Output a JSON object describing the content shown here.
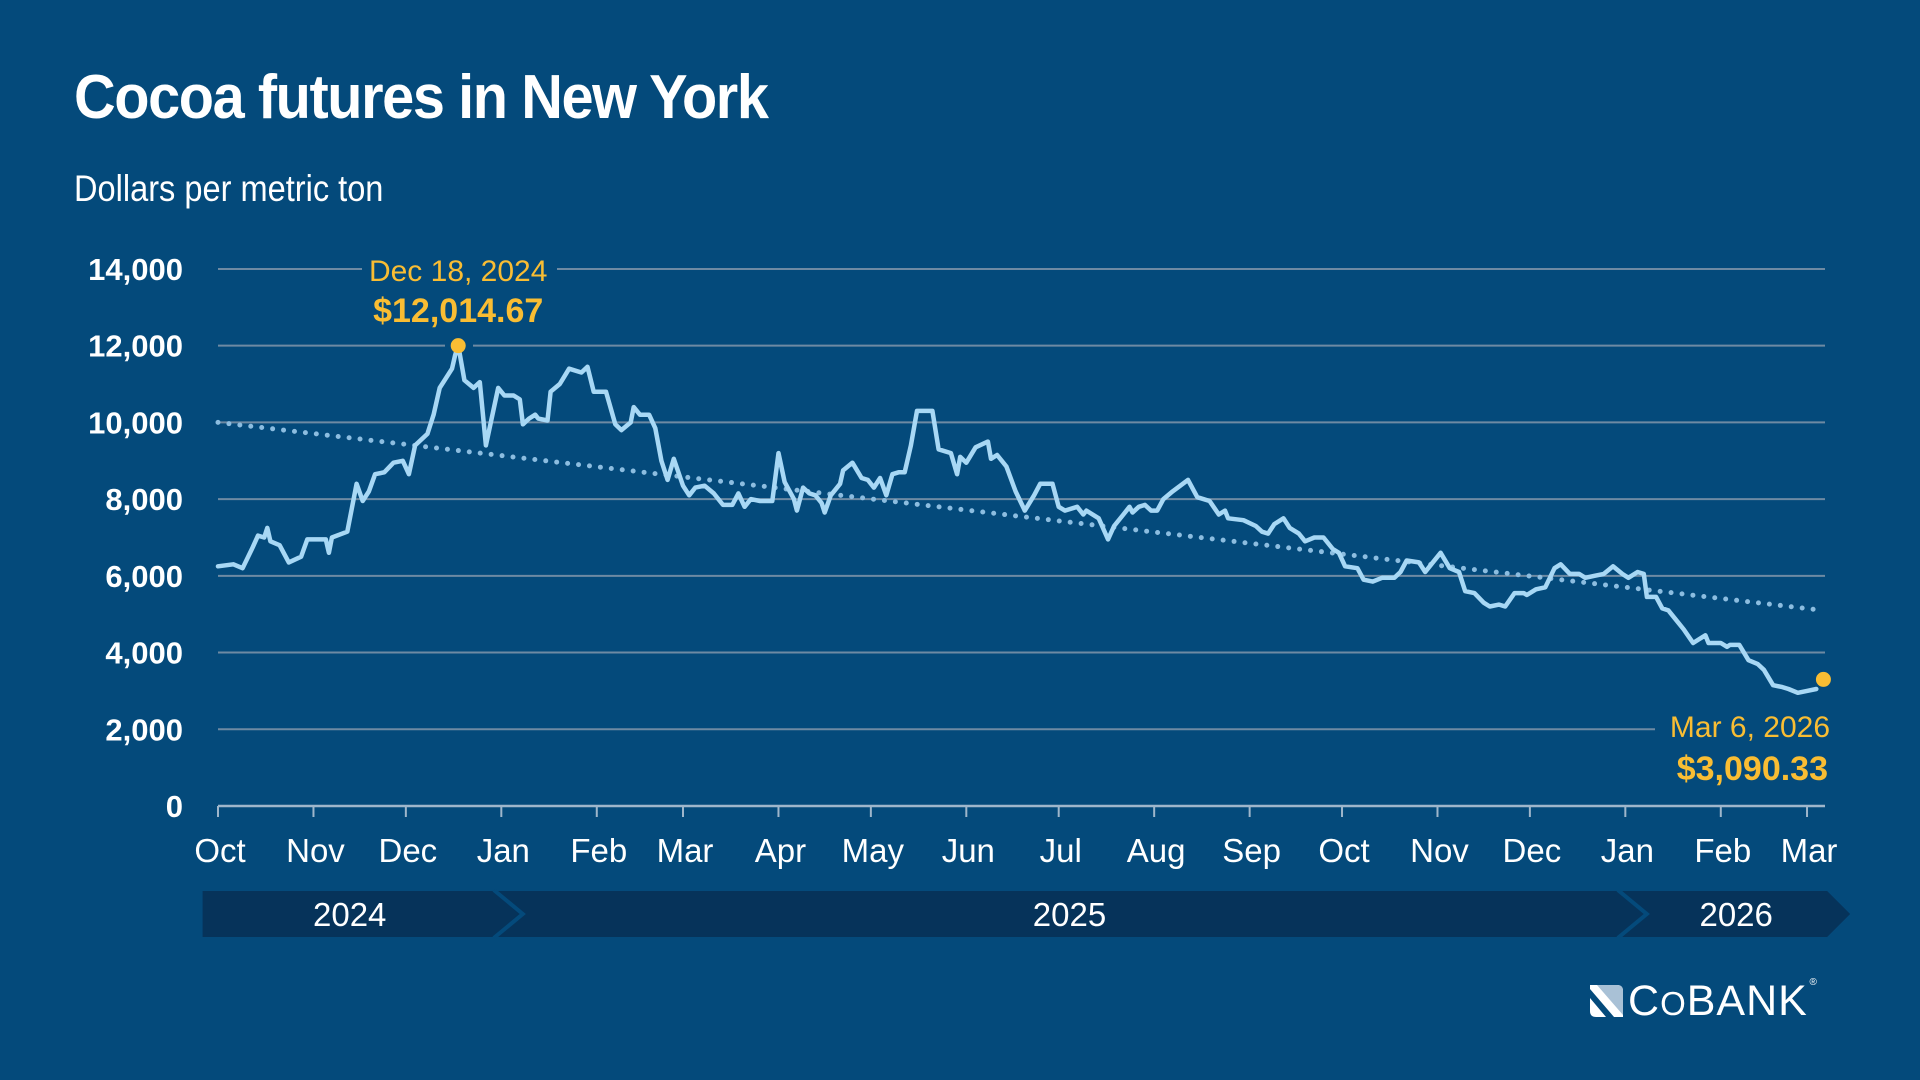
{
  "header": {
    "title": "Cocoa futures in New York",
    "subtitle": "Dollars per metric ton"
  },
  "colors": {
    "background": "#044a7b",
    "line": "#a8d8f5",
    "trend": "#8cbde0",
    "highlight": "#f9bd33",
    "gridline": "#6e8aa3",
    "year_band": "#06335a"
  },
  "logo": {
    "text_c": "C",
    "text_o": "O",
    "text_rest": "BANK",
    "reg": "®"
  },
  "chart_data": {
    "type": "line",
    "title": "Cocoa futures in New York",
    "subtitle": "Dollars per metric ton",
    "xlabel": "",
    "ylabel": "Dollars per metric ton",
    "ylim": [
      0,
      14000
    ],
    "grid": true,
    "y_ticks": [
      {
        "value": 0,
        "label": "0"
      },
      {
        "value": 2000,
        "label": "2,000"
      },
      {
        "value": 4000,
        "label": "4,000"
      },
      {
        "value": 6000,
        "label": "6,000"
      },
      {
        "value": 8000,
        "label": "8,000"
      },
      {
        "value": 10000,
        "label": "10,000"
      },
      {
        "value": 12000,
        "label": "12,000"
      },
      {
        "value": 14000,
        "label": "14,000"
      }
    ],
    "x_start_date": "2024-10-01",
    "x_range_days": [
      0,
      521
    ],
    "x_ticks": [
      {
        "day": 0,
        "label": "Oct"
      },
      {
        "day": 31,
        "label": "Nov"
      },
      {
        "day": 61,
        "label": "Dec"
      },
      {
        "day": 92,
        "label": "Jan"
      },
      {
        "day": 123,
        "label": "Feb"
      },
      {
        "day": 151,
        "label": "Mar"
      },
      {
        "day": 182,
        "label": "Apr"
      },
      {
        "day": 212,
        "label": "May"
      },
      {
        "day": 243,
        "label": "Jun"
      },
      {
        "day": 273,
        "label": "Jul"
      },
      {
        "day": 304,
        "label": "Aug"
      },
      {
        "day": 335,
        "label": "Sep"
      },
      {
        "day": 365,
        "label": "Oct"
      },
      {
        "day": 396,
        "label": "Nov"
      },
      {
        "day": 426,
        "label": "Dec"
      },
      {
        "day": 457,
        "label": "Jan"
      },
      {
        "day": 488,
        "label": "Feb"
      },
      {
        "day": 516,
        "label": "Mar"
      }
    ],
    "years": [
      {
        "label": "2024",
        "start_day": -5,
        "end_day": 98
      },
      {
        "label": "2025",
        "start_day": 90,
        "end_day": 463
      },
      {
        "label": "2026",
        "start_day": 456,
        "end_day": 530
      }
    ],
    "series": [
      {
        "name": "Cocoa futures (New York)",
        "points": [
          [
            0,
            6250
          ],
          [
            5,
            6300
          ],
          [
            8,
            6200
          ],
          [
            11,
            6700
          ],
          [
            13,
            7050
          ],
          [
            15,
            7000
          ],
          [
            16,
            7250
          ],
          [
            17,
            6900
          ],
          [
            20,
            6800
          ],
          [
            23,
            6350
          ],
          [
            27,
            6500
          ],
          [
            29,
            6950
          ],
          [
            35,
            6950
          ],
          [
            36,
            6600
          ],
          [
            37,
            7000
          ],
          [
            42,
            7150
          ],
          [
            45,
            8400
          ],
          [
            47,
            7950
          ],
          [
            49,
            8200
          ],
          [
            51,
            8650
          ],
          [
            54,
            8700
          ],
          [
            57,
            8950
          ],
          [
            60,
            9000
          ],
          [
            62,
            8650
          ],
          [
            64,
            9400
          ],
          [
            68,
            9700
          ],
          [
            70,
            10200
          ],
          [
            72,
            10900
          ],
          [
            76,
            11400
          ],
          [
            77,
            11750
          ],
          [
            78,
            12014.67
          ],
          [
            80,
            11100
          ],
          [
            83,
            10900
          ],
          [
            85,
            11050
          ],
          [
            87,
            9400
          ],
          [
            91,
            10900
          ],
          [
            93,
            10700
          ],
          [
            96,
            10700
          ],
          [
            98,
            10600
          ],
          [
            99,
            9950
          ],
          [
            101,
            10100
          ],
          [
            103,
            10200
          ],
          [
            104,
            10100
          ],
          [
            107,
            10050
          ],
          [
            108,
            10800
          ],
          [
            111,
            11000
          ],
          [
            114,
            11400
          ],
          [
            118,
            11300
          ],
          [
            120,
            11450
          ],
          [
            122,
            10800
          ],
          [
            126,
            10800
          ],
          [
            129,
            9950
          ],
          [
            131,
            9800
          ],
          [
            134,
            10000
          ],
          [
            135,
            10400
          ],
          [
            137,
            10200
          ],
          [
            140,
            10200
          ],
          [
            142,
            9850
          ],
          [
            144,
            9000
          ],
          [
            146,
            8500
          ],
          [
            148,
            9050
          ],
          [
            151,
            8350
          ],
          [
            153,
            8100
          ],
          [
            155,
            8300
          ],
          [
            158,
            8350
          ],
          [
            161,
            8150
          ],
          [
            164,
            7850
          ],
          [
            167,
            7850
          ],
          [
            169,
            8150
          ],
          [
            171,
            7800
          ],
          [
            173,
            8000
          ],
          [
            176,
            7950
          ],
          [
            179,
            7950
          ],
          [
            180,
            7950
          ],
          [
            182,
            9200
          ],
          [
            184,
            8450
          ],
          [
            187,
            8000
          ],
          [
            188,
            7700
          ],
          [
            190,
            8300
          ],
          [
            192,
            8150
          ],
          [
            194,
            8100
          ],
          [
            196,
            7900
          ],
          [
            197,
            7650
          ],
          [
            199,
            8100
          ],
          [
            202,
            8400
          ],
          [
            203,
            8750
          ],
          [
            206,
            8950
          ],
          [
            209,
            8550
          ],
          [
            211,
            8500
          ],
          [
            213,
            8300
          ],
          [
            215,
            8550
          ],
          [
            217,
            8100
          ],
          [
            219,
            8650
          ],
          [
            221,
            8700
          ],
          [
            223,
            8700
          ],
          [
            225,
            9400
          ],
          [
            227,
            10300
          ],
          [
            232,
            10300
          ],
          [
            234,
            9300
          ],
          [
            238,
            9200
          ],
          [
            240,
            8650
          ],
          [
            241,
            9100
          ],
          [
            243,
            8950
          ],
          [
            246,
            9350
          ],
          [
            250,
            9500
          ],
          [
            251,
            9050
          ],
          [
            253,
            9150
          ],
          [
            256,
            8850
          ],
          [
            259,
            8200
          ],
          [
            262,
            7700
          ],
          [
            265,
            8100
          ],
          [
            267,
            8400
          ],
          [
            271,
            8400
          ],
          [
            273,
            7800
          ],
          [
            275,
            7700
          ],
          [
            279,
            7800
          ],
          [
            281,
            7600
          ],
          [
            282,
            7700
          ],
          [
            286,
            7500
          ],
          [
            289,
            6950
          ],
          [
            291,
            7300
          ],
          [
            294,
            7600
          ],
          [
            296,
            7800
          ],
          [
            297,
            7650
          ],
          [
            299,
            7800
          ],
          [
            301,
            7850
          ],
          [
            303,
            7700
          ],
          [
            305,
            7700
          ],
          [
            307,
            8000
          ],
          [
            310,
            8200
          ],
          [
            315,
            8500
          ],
          [
            318,
            8050
          ],
          [
            322,
            7950
          ],
          [
            325,
            7600
          ],
          [
            327,
            7700
          ],
          [
            328,
            7500
          ],
          [
            333,
            7450
          ],
          [
            337,
            7300
          ],
          [
            339,
            7150
          ],
          [
            341,
            7100
          ],
          [
            343,
            7350
          ],
          [
            346,
            7500
          ],
          [
            348,
            7250
          ],
          [
            351,
            7100
          ],
          [
            353,
            6900
          ],
          [
            356,
            7000
          ],
          [
            359,
            7000
          ],
          [
            362,
            6700
          ],
          [
            364,
            6600
          ],
          [
            366,
            6250
          ],
          [
            370,
            6200
          ],
          [
            372,
            5900
          ],
          [
            375,
            5850
          ],
          [
            378,
            5950
          ],
          [
            380,
            5950
          ],
          [
            382,
            5950
          ],
          [
            384,
            6100
          ],
          [
            386,
            6400
          ],
          [
            390,
            6350
          ],
          [
            392,
            6100
          ],
          [
            394,
            6300
          ],
          [
            397,
            6600
          ],
          [
            400,
            6200
          ],
          [
            403,
            6100
          ],
          [
            405,
            5600
          ],
          [
            408,
            5550
          ],
          [
            411,
            5300
          ],
          [
            413,
            5200
          ],
          [
            416,
            5250
          ],
          [
            418,
            5200
          ],
          [
            421,
            5550
          ],
          [
            424,
            5550
          ],
          [
            425,
            5500
          ],
          [
            428,
            5650
          ],
          [
            431,
            5700
          ],
          [
            434,
            6200
          ],
          [
            436,
            6300
          ],
          [
            439,
            6050
          ],
          [
            442,
            6050
          ],
          [
            444,
            5950
          ],
          [
            447,
            6000
          ],
          [
            450,
            6050
          ],
          [
            453,
            6250
          ],
          [
            456,
            6050
          ],
          [
            458,
            5950
          ],
          [
            461,
            6100
          ],
          [
            463,
            6050
          ],
          [
            464,
            5450
          ],
          [
            467,
            5450
          ],
          [
            469,
            5150
          ],
          [
            471,
            5100
          ],
          [
            474,
            4800
          ],
          [
            476,
            4600
          ],
          [
            479,
            4250
          ],
          [
            481,
            4350
          ],
          [
            483,
            4450
          ],
          [
            484,
            4250
          ],
          [
            488,
            4250
          ],
          [
            490,
            4150
          ],
          [
            491,
            4200
          ],
          [
            494,
            4200
          ],
          [
            497,
            3800
          ],
          [
            500,
            3700
          ],
          [
            502,
            3550
          ],
          [
            505,
            3150
          ],
          [
            508,
            3100
          ],
          [
            510,
            3050
          ],
          [
            513,
            2950
          ],
          [
            516,
            3000
          ],
          [
            519,
            3050
          ]
        ]
      },
      {
        "name": "Trend line",
        "style": "dotted",
        "points": [
          [
            0,
            10000
          ],
          [
            521,
            5100
          ]
        ]
      }
    ],
    "annotations": [
      {
        "label_date": "Dec 18, 2024",
        "label_value": "$12,014.67",
        "day": 78,
        "value": 12014.67,
        "marker_value": 12000
      },
      {
        "label_date": "Mar 6, 2026",
        "label_value": "$3,090.33",
        "day": 521,
        "value": 3090.33,
        "marker_value": 3300
      }
    ]
  }
}
